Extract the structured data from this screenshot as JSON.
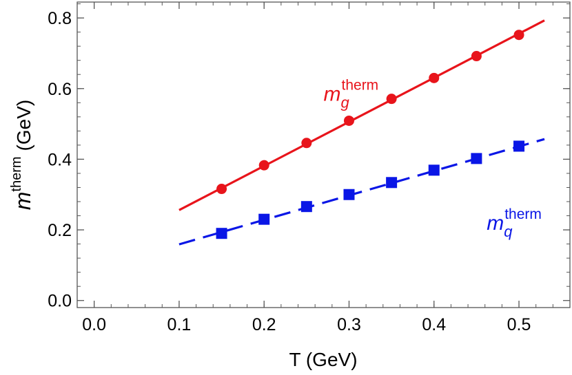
{
  "chart_data": {
    "type": "line",
    "xlabel": "T (GeV)",
    "ylabel": {
      "main": "m",
      "sup": "therm",
      "unit": "(GeV)"
    },
    "xlim": [
      -0.02,
      0.56
    ],
    "ylim": [
      -0.02,
      0.845
    ],
    "xticks": [
      0.0,
      0.1,
      0.2,
      0.3,
      0.4,
      0.5
    ],
    "yticks": [
      0.0,
      0.2,
      0.4,
      0.6,
      0.8
    ],
    "xtick_labels": [
      "0.0",
      "0.1",
      "0.2",
      "0.3",
      "0.4",
      "0.5"
    ],
    "ytick_labels": [
      "0.0",
      "0.2",
      "0.4",
      "0.6",
      "0.8"
    ],
    "grid": false,
    "series": [
      {
        "label": {
          "main": "m",
          "sub": "g",
          "sup": "therm"
        },
        "label_at": [
          0.27,
          0.565
        ],
        "color": "#e8141b",
        "line_style": "solid",
        "marker": "circle",
        "line": {
          "x": [
            0.1,
            0.53
          ],
          "y": [
            0.256,
            0.793
          ]
        },
        "x": [
          0.15,
          0.2,
          0.25,
          0.3,
          0.35,
          0.4,
          0.45,
          0.5
        ],
        "y": [
          0.316,
          0.383,
          0.446,
          0.509,
          0.571,
          0.63,
          0.692,
          0.752
        ]
      },
      {
        "label": {
          "main": "m",
          "sub": "q",
          "sup": "therm"
        },
        "label_at": [
          0.462,
          0.2
        ],
        "color": "#0a16e6",
        "line_style": "dashed",
        "marker": "square",
        "line": {
          "x": [
            0.1,
            0.53
          ],
          "y": [
            0.159,
            0.457
          ]
        },
        "x": [
          0.15,
          0.2,
          0.25,
          0.3,
          0.35,
          0.4,
          0.45,
          0.5
        ],
        "y": [
          0.19,
          0.23,
          0.266,
          0.3,
          0.334,
          0.369,
          0.402,
          0.437
        ]
      }
    ]
  }
}
